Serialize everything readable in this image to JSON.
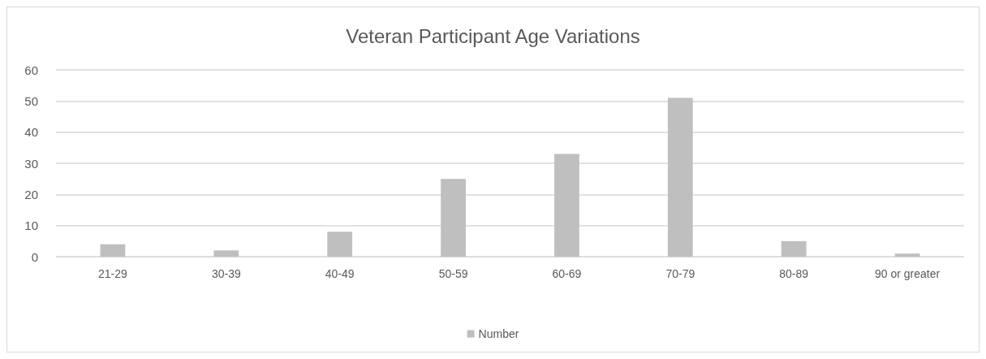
{
  "chart_data": {
    "type": "bar",
    "title": "Veteran Participant Age Variations",
    "categories": [
      "21-29",
      "30-39",
      "40-49",
      "50-59",
      "60-69",
      "70-79",
      "80-89",
      "90 or greater"
    ],
    "series": [
      {
        "name": "Number",
        "color": "#bfbfbf",
        "values": [
          4,
          2,
          8,
          25,
          33,
          51,
          5,
          1
        ]
      }
    ],
    "ylim": [
      0,
      60
    ],
    "yticks": [
      0,
      10,
      20,
      30,
      40,
      50,
      60
    ],
    "grid": "y",
    "legend": "bottom"
  }
}
